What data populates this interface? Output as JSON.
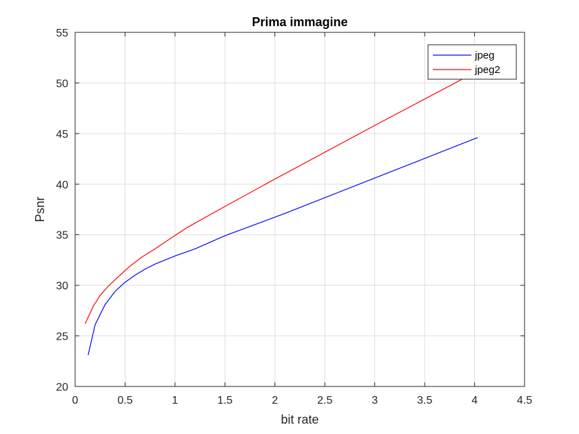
{
  "chart_data": {
    "type": "line",
    "title": "Prima immagine",
    "xlabel": "bit rate",
    "ylabel": "Psnr",
    "xlim": [
      0,
      4.5
    ],
    "ylim": [
      20,
      55
    ],
    "xticks": [
      "0",
      "0.5",
      "1",
      "1.5",
      "2",
      "2.5",
      "3",
      "3.5",
      "4",
      "4.5"
    ],
    "yticks": [
      "20",
      "25",
      "30",
      "35",
      "40",
      "45",
      "50",
      "55"
    ],
    "grid": true,
    "legend_position": "top-right",
    "series": [
      {
        "name": "jpeg",
        "color": "#0000ff",
        "x": [
          0.13,
          0.2,
          0.3,
          0.4,
          0.5,
          0.6,
          0.7,
          0.8,
          0.9,
          1.0,
          1.2,
          1.5,
          2.1,
          3.0,
          4.03
        ],
        "y": [
          23.1,
          26.1,
          28.1,
          29.4,
          30.3,
          31.0,
          31.6,
          32.1,
          32.5,
          32.9,
          33.6,
          34.9,
          37.1,
          40.6,
          44.6
        ]
      },
      {
        "name": "jpeg2",
        "color": "#ff0000",
        "x": [
          0.1,
          0.18,
          0.25,
          0.33,
          0.45,
          0.55,
          0.67,
          0.8,
          0.95,
          1.12,
          1.5,
          2.0,
          3.0,
          3.9
        ],
        "y": [
          26.2,
          27.9,
          29.0,
          29.9,
          31.0,
          31.9,
          32.8,
          33.6,
          34.6,
          35.7,
          37.8,
          40.5,
          45.8,
          50.5
        ]
      }
    ]
  }
}
